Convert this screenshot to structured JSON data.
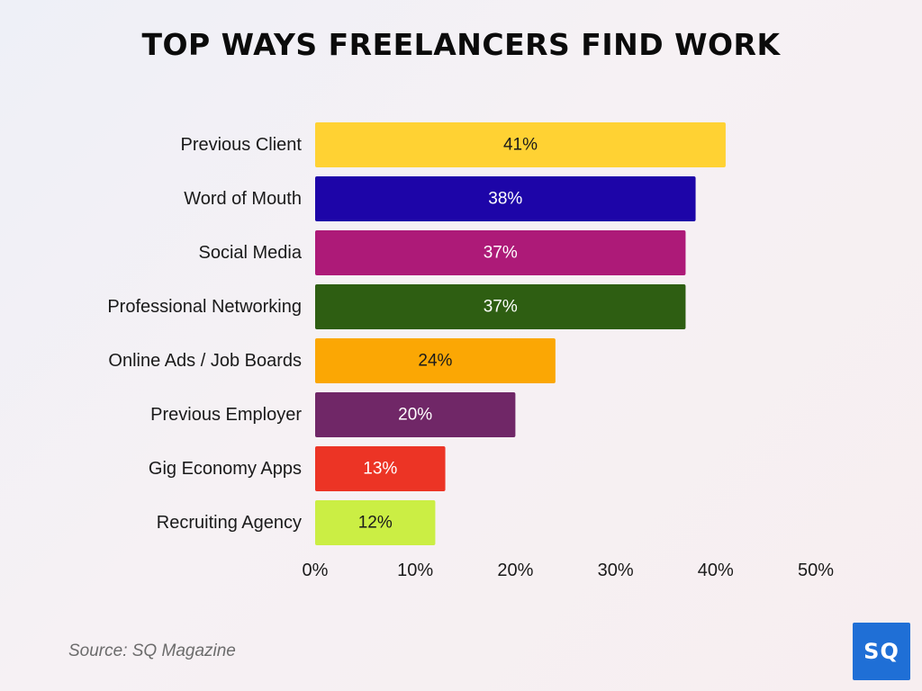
{
  "title": "TOP WAYS FREELANCERS FIND WORK",
  "source": "Source: SQ Magazine",
  "logo": "SQ",
  "chart_data": {
    "type": "bar",
    "orientation": "horizontal",
    "title": "TOP WAYS FREELANCERS FIND WORK",
    "categories": [
      "Previous Client",
      "Word of Mouth",
      "Social Media",
      "Professional Networking",
      "Online Ads / Job Boards",
      "Previous Employer",
      "Gig Economy Apps",
      "Recruiting Agency"
    ],
    "values": [
      41,
      38,
      37,
      37,
      24,
      20,
      13,
      12
    ],
    "value_labels": [
      "41%",
      "38%",
      "37%",
      "37%",
      "24%",
      "20%",
      "13%",
      "12%"
    ],
    "bar_colors": [
      "#ffd233",
      "#1d05a8",
      "#ad1a78",
      "#2e5e12",
      "#fba704",
      "#702767",
      "#ec3425",
      "#cbee44"
    ],
    "label_colors": [
      "#1a1a1a",
      "#ffffff",
      "#ffffff",
      "#ffffff",
      "#1a1a1a",
      "#ffffff",
      "#ffffff",
      "#1a1a1a"
    ],
    "x_ticks": [
      0,
      10,
      20,
      30,
      40,
      50
    ],
    "x_tick_labels": [
      "0%",
      "10%",
      "20%",
      "30%",
      "40%",
      "50%"
    ],
    "xlim": [
      0,
      50
    ],
    "xlabel": "",
    "ylabel": "",
    "grid": false,
    "legend": "none"
  }
}
